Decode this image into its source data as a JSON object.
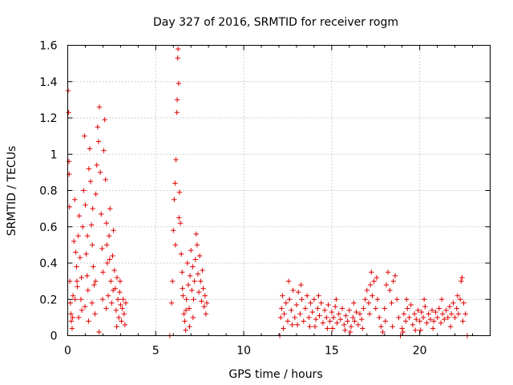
{
  "chart_data": {
    "type": "scatter",
    "title": "Day 327 of 2016, SRMTID for receiver rogm",
    "xlabel": "GPS time / hours",
    "ylabel": "SRMTID / TECUs",
    "xlim": [
      0,
      24
    ],
    "ylim": [
      0,
      1.6
    ],
    "xticks": [
      0,
      5,
      10,
      15,
      20
    ],
    "xtick_labels": [
      "0",
      "5",
      "10",
      "15",
      "20"
    ],
    "yticks": [
      0,
      0.2,
      0.4,
      0.6,
      0.8,
      1.0,
      1.2,
      1.4,
      1.6
    ],
    "ytick_labels": [
      "0",
      "0.2",
      "0.4",
      "0.6",
      "0.8",
      "1",
      "1.2",
      "1.4",
      "1.6"
    ],
    "grid": true,
    "marker": "plus",
    "series_color": "#e00000",
    "series": [
      {
        "name": "SRMTID",
        "points": [
          [
            0.02,
            1.35
          ],
          [
            0.05,
            1.23
          ],
          [
            0.07,
            0.96
          ],
          [
            0.08,
            0.89
          ],
          [
            0.1,
            0.71
          ],
          [
            0.12,
            0.3
          ],
          [
            0.15,
            0.18
          ],
          [
            0.2,
            0.08
          ],
          [
            0.25,
            0.04
          ],
          [
            0.3,
            0.22
          ],
          [
            0.35,
            0.52
          ],
          [
            0.4,
            0.75
          ],
          [
            0.45,
            0.46
          ],
          [
            0.5,
            0.38
          ],
          [
            0.55,
            0.27
          ],
          [
            0.6,
            0.55
          ],
          [
            0.65,
            0.66
          ],
          [
            0.7,
            0.43
          ],
          [
            0.75,
            0.2
          ],
          [
            0.8,
            0.14
          ],
          [
            0.85,
            0.6
          ],
          [
            0.9,
            0.8
          ],
          [
            0.95,
            1.1
          ],
          [
            1.0,
            0.72
          ],
          [
            1.05,
            0.45
          ],
          [
            1.1,
            0.33
          ],
          [
            1.15,
            0.25
          ],
          [
            1.2,
            0.92
          ],
          [
            1.25,
            1.03
          ],
          [
            1.3,
            0.85
          ],
          [
            1.35,
            0.61
          ],
          [
            1.4,
            0.5
          ],
          [
            1.45,
            0.38
          ],
          [
            1.5,
            0.28
          ],
          [
            1.55,
            0.12
          ],
          [
            1.6,
            0.78
          ],
          [
            1.65,
            0.94
          ],
          [
            1.7,
            1.15
          ],
          [
            1.75,
            1.07
          ],
          [
            1.8,
            1.26
          ],
          [
            1.85,
            0.9
          ],
          [
            1.9,
            0.67
          ],
          [
            1.95,
            0.48
          ],
          [
            2.0,
            0.35
          ],
          [
            2.05,
            1.02
          ],
          [
            2.1,
            1.19
          ],
          [
            2.15,
            0.86
          ],
          [
            2.2,
            0.62
          ],
          [
            2.25,
            0.4
          ],
          [
            2.3,
            0.22
          ],
          [
            2.35,
            0.55
          ],
          [
            2.4,
            0.7
          ],
          [
            2.45,
            0.3
          ],
          [
            2.5,
            0.18
          ],
          [
            2.55,
            0.44
          ],
          [
            2.6,
            0.58
          ],
          [
            2.65,
            0.36
          ],
          [
            2.7,
            0.26
          ],
          [
            2.75,
            0.14
          ],
          [
            2.8,
            0.32
          ],
          [
            2.85,
            0.2
          ],
          [
            2.9,
            0.1
          ],
          [
            2.95,
            0.24
          ],
          [
            3.0,
            0.17
          ],
          [
            3.05,
            0.08
          ],
          [
            3.1,
            0.15
          ],
          [
            3.15,
            0.2
          ],
          [
            3.2,
            0.12
          ],
          [
            3.25,
            0.06
          ],
          [
            3.3,
            0.18
          ],
          [
            0.18,
            0.12
          ],
          [
            0.28,
            0.1
          ],
          [
            0.42,
            0.2
          ],
          [
            0.62,
            0.1
          ],
          [
            0.78,
            0.32
          ],
          [
            0.98,
            0.16
          ],
          [
            1.18,
            0.08
          ],
          [
            1.38,
            0.18
          ],
          [
            1.58,
            0.3
          ],
          [
            1.78,
            0.02
          ],
          [
            1.98,
            0.2
          ],
          [
            2.18,
            0.15
          ],
          [
            2.38,
            0.42
          ],
          [
            2.58,
            0.25
          ],
          [
            2.78,
            0.05
          ],
          [
            2.98,
            0.3
          ],
          [
            1.12,
            0.55
          ],
          [
            1.42,
            0.7
          ],
          [
            0.52,
            0.3
          ],
          [
            2.22,
            0.5
          ],
          [
            5.8,
            0.0
          ],
          [
            5.9,
            0.18
          ],
          [
            5.95,
            0.3
          ],
          [
            6.0,
            0.58
          ],
          [
            6.05,
            0.75
          ],
          [
            6.1,
            0.84
          ],
          [
            6.15,
            0.97
          ],
          [
            6.2,
            1.23
          ],
          [
            6.22,
            1.3
          ],
          [
            6.25,
            1.53
          ],
          [
            6.27,
            1.58
          ],
          [
            6.3,
            1.39
          ],
          [
            6.35,
            0.79
          ],
          [
            6.4,
            0.62
          ],
          [
            6.45,
            0.45
          ],
          [
            6.5,
            0.35
          ],
          [
            6.55,
            0.22
          ],
          [
            6.6,
            0.12
          ],
          [
            6.65,
            0.08
          ],
          [
            6.7,
            0.03
          ],
          [
            6.75,
            0.2
          ],
          [
            6.8,
            0.4
          ],
          [
            6.85,
            0.28
          ],
          [
            6.9,
            0.15
          ],
          [
            6.95,
            0.33
          ],
          [
            7.0,
            0.47
          ],
          [
            7.05,
            0.25
          ],
          [
            7.1,
            0.38
          ],
          [
            7.15,
            0.2
          ],
          [
            7.2,
            0.3
          ],
          [
            7.25,
            0.42
          ],
          [
            7.3,
            0.56
          ],
          [
            7.35,
            0.5
          ],
          [
            7.4,
            0.34
          ],
          [
            7.45,
            0.24
          ],
          [
            7.5,
            0.44
          ],
          [
            7.55,
            0.3
          ],
          [
            7.6,
            0.19
          ],
          [
            7.65,
            0.36
          ],
          [
            7.7,
            0.26
          ],
          [
            7.75,
            0.16
          ],
          [
            7.8,
            0.22
          ],
          [
            7.85,
            0.12
          ],
          [
            7.9,
            0.18
          ],
          [
            6.12,
            0.5
          ],
          [
            6.32,
            0.65
          ],
          [
            6.52,
            0.26
          ],
          [
            6.72,
            0.14
          ],
          [
            6.92,
            0.05
          ],
          [
            7.12,
            0.1
          ],
          [
            12.05,
            0.0
          ],
          [
            12.1,
            0.1
          ],
          [
            12.15,
            0.15
          ],
          [
            12.2,
            0.22
          ],
          [
            12.3,
            0.12
          ],
          [
            12.4,
            0.18
          ],
          [
            12.5,
            0.08
          ],
          [
            12.6,
            0.2
          ],
          [
            12.7,
            0.14
          ],
          [
            12.8,
            0.25
          ],
          [
            12.9,
            0.1
          ],
          [
            13.0,
            0.17
          ],
          [
            13.1,
            0.24
          ],
          [
            13.2,
            0.12
          ],
          [
            13.3,
            0.2
          ],
          [
            13.4,
            0.08
          ],
          [
            13.5,
            0.15
          ],
          [
            13.6,
            0.22
          ],
          [
            13.7,
            0.1
          ],
          [
            13.8,
            0.18
          ],
          [
            13.9,
            0.13
          ],
          [
            14.0,
            0.2
          ],
          [
            14.1,
            0.09
          ],
          [
            14.2,
            0.15
          ],
          [
            14.3,
            0.11
          ],
          [
            14.4,
            0.18
          ],
          [
            14.5,
            0.07
          ],
          [
            14.6,
            0.14
          ],
          [
            14.7,
            0.1
          ],
          [
            14.8,
            0.17
          ],
          [
            14.9,
            0.08
          ],
          [
            15.0,
            0.13
          ],
          [
            15.1,
            0.1
          ],
          [
            15.2,
            0.16
          ],
          [
            15.3,
            0.07
          ],
          [
            15.4,
            0.12
          ],
          [
            15.5,
            0.09
          ],
          [
            15.6,
            0.15
          ],
          [
            15.7,
            0.06
          ],
          [
            15.8,
            0.11
          ],
          [
            15.9,
            0.08
          ],
          [
            16.0,
            0.14
          ],
          [
            16.1,
            0.05
          ],
          [
            16.2,
            0.1
          ],
          [
            16.3,
            0.08
          ],
          [
            16.4,
            0.13
          ],
          [
            16.5,
            0.06
          ],
          [
            16.6,
            0.12
          ],
          [
            16.7,
            0.09
          ],
          [
            16.8,
            0.15
          ],
          [
            16.9,
            0.2
          ],
          [
            17.0,
            0.25
          ],
          [
            17.1,
            0.18
          ],
          [
            17.2,
            0.28
          ],
          [
            17.25,
            0.35
          ],
          [
            17.3,
            0.22
          ],
          [
            17.4,
            0.3
          ],
          [
            17.5,
            0.15
          ],
          [
            17.6,
            0.2
          ],
          [
            17.7,
            0.1
          ],
          [
            17.8,
            0.05
          ],
          [
            17.9,
            0.02
          ],
          [
            18.0,
            0.15
          ],
          [
            18.1,
            0.28
          ],
          [
            18.2,
            0.35
          ],
          [
            18.3,
            0.25
          ],
          [
            18.4,
            0.18
          ],
          [
            18.5,
            0.3
          ],
          [
            18.6,
            0.33
          ],
          [
            18.7,
            0.2
          ],
          [
            18.8,
            0.1
          ],
          [
            18.9,
            0.0
          ],
          [
            19.0,
            0.04
          ],
          [
            19.1,
            0.12
          ],
          [
            19.2,
            0.08
          ],
          [
            19.3,
            0.15
          ],
          [
            19.4,
            0.1
          ],
          [
            19.5,
            0.17
          ],
          [
            19.6,
            0.06
          ],
          [
            19.7,
            0.12
          ],
          [
            19.8,
            0.09
          ],
          [
            19.9,
            0.14
          ],
          [
            20.0,
            0.08
          ],
          [
            20.1,
            0.13
          ],
          [
            20.2,
            0.1
          ],
          [
            20.3,
            0.16
          ],
          [
            20.4,
            0.07
          ],
          [
            20.5,
            0.12
          ],
          [
            20.6,
            0.09
          ],
          [
            20.7,
            0.14
          ],
          [
            20.8,
            0.08
          ],
          [
            20.9,
            0.13
          ],
          [
            21.0,
            0.1
          ],
          [
            21.1,
            0.15
          ],
          [
            21.2,
            0.07
          ],
          [
            21.3,
            0.12
          ],
          [
            21.4,
            0.09
          ],
          [
            21.5,
            0.14
          ],
          [
            21.6,
            0.1
          ],
          [
            21.7,
            0.16
          ],
          [
            21.8,
            0.12
          ],
          [
            21.9,
            0.18
          ],
          [
            22.0,
            0.1
          ],
          [
            22.1,
            0.15
          ],
          [
            22.2,
            0.12
          ],
          [
            22.3,
            0.2
          ],
          [
            22.35,
            0.3
          ],
          [
            22.4,
            0.32
          ],
          [
            22.5,
            0.18
          ],
          [
            22.6,
            0.12
          ],
          [
            22.7,
            0.0
          ],
          [
            12.25,
            0.04
          ],
          [
            12.75,
            0.06
          ],
          [
            13.25,
            0.28
          ],
          [
            13.75,
            0.05
          ],
          [
            14.25,
            0.22
          ],
          [
            14.75,
            0.04
          ],
          [
            15.25,
            0.2
          ],
          [
            15.75,
            0.03
          ],
          [
            16.25,
            0.18
          ],
          [
            16.75,
            0.04
          ],
          [
            17.15,
            0.12
          ],
          [
            17.55,
            0.32
          ],
          [
            18.05,
            0.08
          ],
          [
            18.45,
            0.05
          ],
          [
            19.25,
            0.2
          ],
          [
            19.75,
            0.03
          ],
          [
            20.25,
            0.2
          ],
          [
            20.75,
            0.04
          ],
          [
            21.25,
            0.2
          ],
          [
            21.75,
            0.05
          ],
          [
            22.15,
            0.22
          ],
          [
            22.45,
            0.08
          ],
          [
            12.55,
            0.3
          ],
          [
            13.05,
            0.06
          ],
          [
            14.05,
            0.05
          ],
          [
            15.05,
            0.04
          ],
          [
            16.05,
            0.02
          ],
          [
            19.05,
            0.02
          ],
          [
            20.05,
            0.03
          ]
        ]
      }
    ]
  }
}
